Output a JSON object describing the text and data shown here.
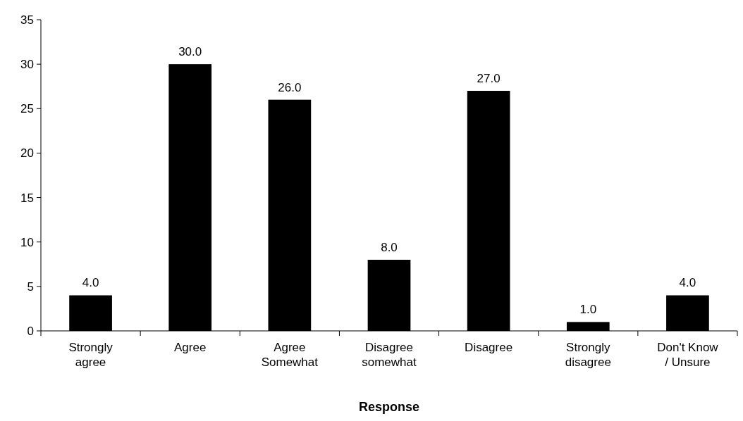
{
  "chart_data": {
    "type": "bar",
    "xlabel": "Response",
    "categories": [
      "Strongly agree",
      "Agree",
      "Agree Somewhat",
      "Disagree somewhat",
      "Disagree",
      "Strongly disagree",
      "Don't Know / Unsure"
    ],
    "values": [
      4,
      30,
      26,
      8,
      27,
      1,
      4
    ],
    "value_labels": [
      "4.0",
      "30.0",
      "26.0",
      "8.0",
      "27.0",
      "1.0",
      "4.0"
    ],
    "color": "#000000",
    "ylim": [
      0,
      35
    ],
    "yticks": [
      0,
      5,
      10,
      15,
      20,
      25,
      30,
      35
    ]
  }
}
